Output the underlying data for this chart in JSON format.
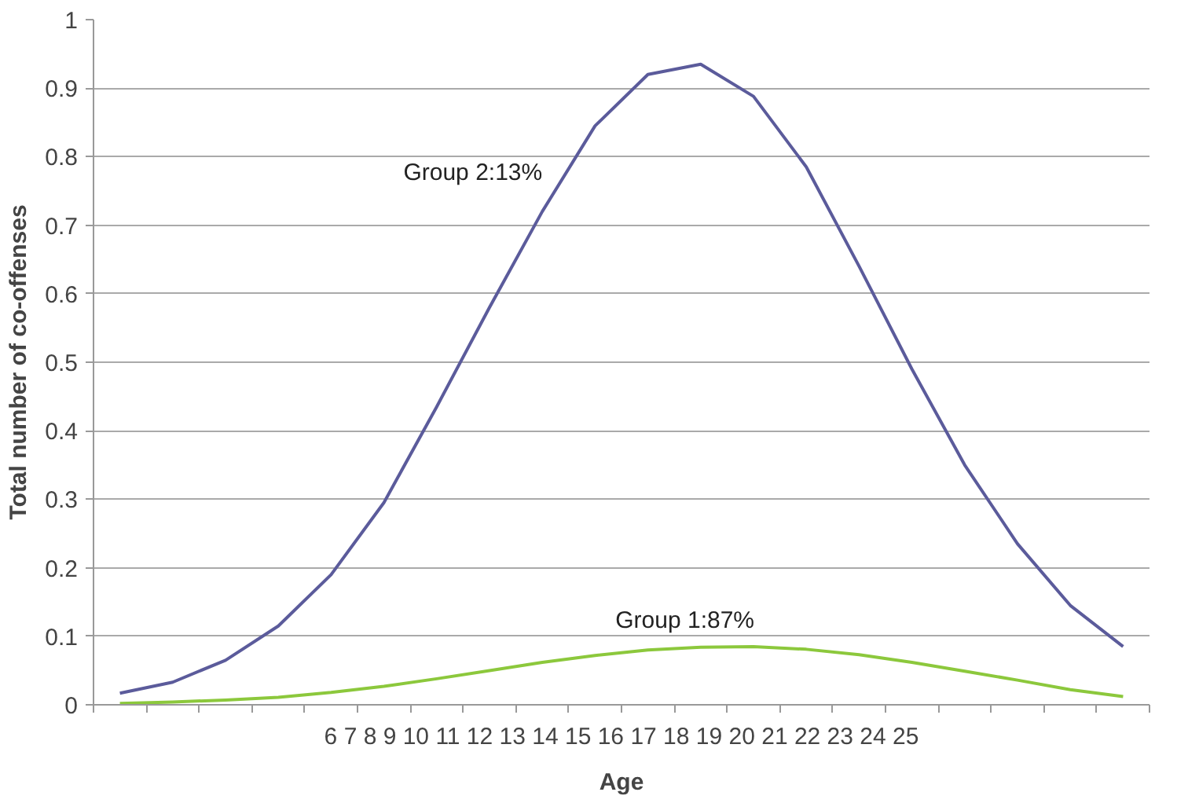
{
  "chart_data": {
    "type": "line",
    "xlabel": "Age",
    "ylabel": "Total number of co-offenses",
    "categories": [
      null,
      null,
      null,
      null,
      null,
      null,
      null,
      null,
      null,
      null,
      null,
      null,
      null,
      null,
      null,
      null,
      null,
      null,
      null,
      null
    ],
    "series": [
      {
        "name": "Group 2:13%",
        "color": "#5b5b9b",
        "values": [
          0.017,
          0.033,
          0.065,
          0.115,
          0.19,
          0.295,
          0.435,
          0.58,
          0.72,
          0.845,
          0.92,
          0.935,
          0.888,
          0.785,
          0.64,
          0.49,
          0.35,
          0.235,
          0.145,
          0.085
        ]
      },
      {
        "name": "Group 1:87%",
        "color": "#8cc83c",
        "values": [
          0.002,
          0.004,
          0.007,
          0.011,
          0.018,
          0.027,
          0.038,
          0.05,
          0.062,
          0.072,
          0.08,
          0.084,
          0.085,
          0.081,
          0.073,
          0.062,
          0.049,
          0.036,
          0.022,
          0.012
        ]
      }
    ],
    "ylim": [
      0,
      1
    ],
    "yticks": [
      0,
      0.1,
      0.2,
      0.3,
      0.4,
      0.5,
      0.6,
      0.7,
      0.8,
      0.9,
      1
    ],
    "grid": "y",
    "marker": "none",
    "line_style": "solid",
    "annotations": [
      "6 7 8 9 10 11 12 13 14 15 16 17 18 19 20 21 22 23 24 25"
    ]
  }
}
